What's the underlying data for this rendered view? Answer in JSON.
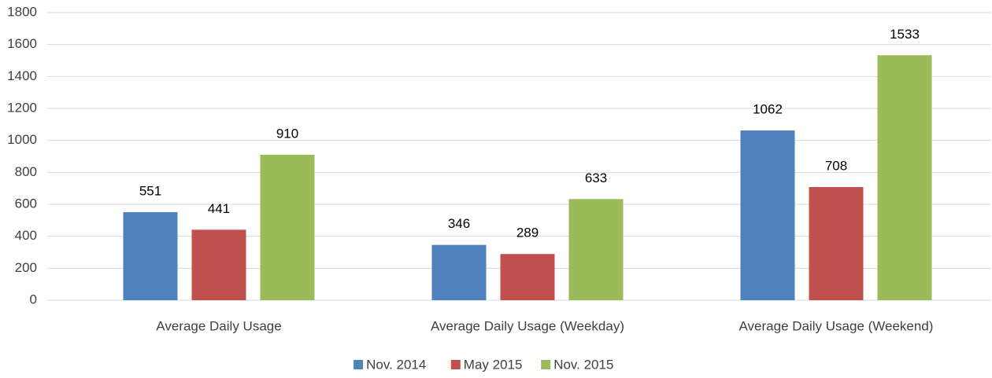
{
  "chart_data": {
    "type": "bar",
    "categories": [
      "Average Daily Usage",
      "Average Daily Usage (Weekday)",
      "Average Daily Usage (Weekend)"
    ],
    "series": [
      {
        "name": "Nov. 2014",
        "color": "#4f81bd",
        "values": [
          551,
          346,
          1062
        ]
      },
      {
        "name": "May 2015",
        "color": "#c0504d",
        "values": [
          441,
          289,
          708
        ]
      },
      {
        "name": "Nov. 2015",
        "color": "#9bbb59",
        "values": [
          910,
          633,
          1533
        ]
      }
    ],
    "ylim": [
      0,
      1800
    ],
    "yticks": [
      0,
      200,
      400,
      600,
      800,
      1000,
      1200,
      1400,
      1600,
      1800
    ],
    "grid": true,
    "legend": "bottom"
  }
}
